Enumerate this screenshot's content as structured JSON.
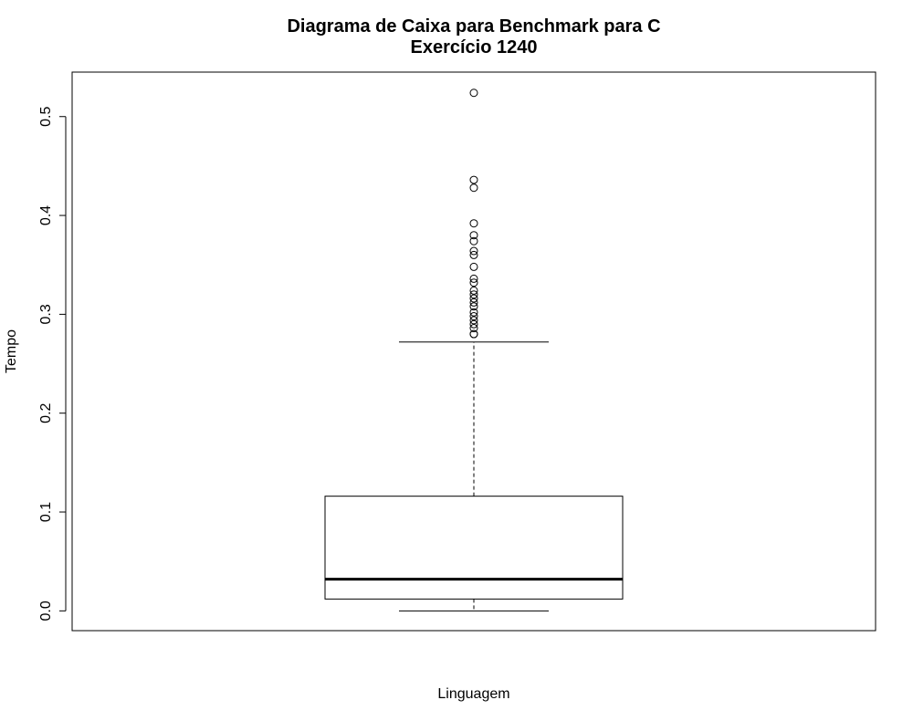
{
  "chart_data": {
    "type": "boxplot",
    "title": "Diagrama de Caixa para Benchmark para C",
    "subtitle": "Exercício 1240",
    "xlabel": "Linguagem",
    "ylabel": "Tempo",
    "ylim": [
      -0.02,
      0.545
    ],
    "yticks": [
      0.0,
      0.1,
      0.2,
      0.3,
      0.4,
      0.5
    ],
    "ytick_labels": [
      "0.0",
      "0.1",
      "0.2",
      "0.3",
      "0.4",
      "0.5"
    ],
    "box": {
      "whisker_low": 0.0,
      "q1": 0.012,
      "median": 0.032,
      "q3": 0.116,
      "whisker_high": 0.272
    },
    "outliers": [
      0.524,
      0.436,
      0.428,
      0.392,
      0.38,
      0.374,
      0.364,
      0.36,
      0.348,
      0.336,
      0.332,
      0.324,
      0.32,
      0.316,
      0.312,
      0.308,
      0.302,
      0.298,
      0.294,
      0.29,
      0.286,
      0.28,
      0.28
    ],
    "grid": false,
    "legend": "none"
  }
}
